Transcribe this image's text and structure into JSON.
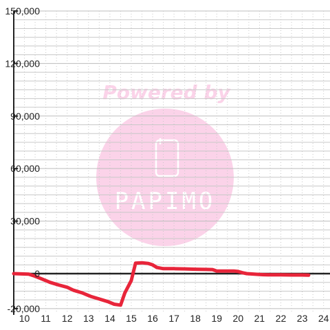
{
  "watermark": {
    "powered_by": "Powered by",
    "brand": "PAPIMO"
  },
  "colors": {
    "series": "#e8253a",
    "grid_minor": "#c8c8c8",
    "grid_major": "#bdbdbd",
    "axis": "#222222",
    "watermark": "#fbd3e9"
  },
  "chart_data": {
    "type": "line",
    "title": "",
    "xlabel": "",
    "ylabel": "",
    "xlim": [
      9.5,
      24.3
    ],
    "ylim": [
      -22000,
      150000
    ],
    "x_ticks": [
      10,
      11,
      12,
      13,
      14,
      15,
      16,
      17,
      18,
      19,
      20,
      21,
      22,
      23,
      24
    ],
    "y_ticks": [
      -20000,
      0,
      30000,
      60000,
      90000,
      120000,
      150000
    ],
    "y_tick_labels": [
      "-20,000",
      "0",
      "30,000",
      "60,000",
      "90,000",
      "120,000",
      "150,000"
    ],
    "grid": true,
    "series": [
      {
        "color": "#e8253a",
        "x": [
          9.5,
          10.2,
          10.5,
          10.8,
          11.2,
          11.6,
          12.0,
          12.3,
          12.7,
          13.1,
          13.5,
          13.9,
          14.2,
          14.5,
          14.7,
          15.0,
          15.2,
          15.5,
          15.8,
          16.0,
          16.2,
          16.5,
          17.0,
          17.5,
          18.0,
          18.5,
          18.8,
          19.0,
          19.5,
          19.8,
          20.0,
          20.2,
          20.4,
          21.0,
          21.4,
          22.0,
          22.5,
          23.0,
          23.3
        ],
        "y": [
          0,
          -300,
          -1500,
          -3000,
          -5000,
          -6500,
          -7800,
          -9500,
          -11000,
          -13000,
          -14500,
          -16000,
          -17500,
          -18000,
          -11000,
          -4000,
          6000,
          6200,
          5800,
          5000,
          3500,
          2800,
          2800,
          2700,
          2500,
          2400,
          2300,
          1500,
          1500,
          1500,
          1200,
          500,
          0,
          -500,
          -700,
          -700,
          -800,
          -800,
          -900
        ]
      }
    ]
  }
}
